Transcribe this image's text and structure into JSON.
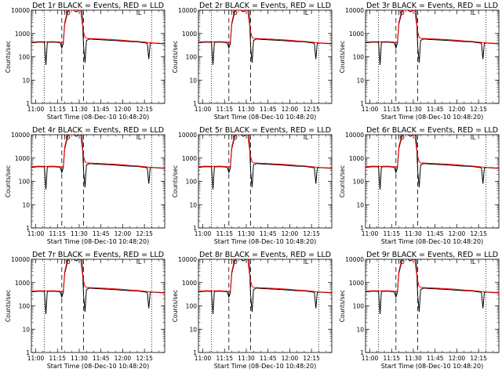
{
  "colors": {
    "events": "#000000",
    "lld": "#ff0000",
    "frame": "#000000"
  },
  "panel_defaults": {
    "type": "line",
    "yscale": "log",
    "ylim": [
      1,
      10000
    ],
    "ylabel": "Counts/sec",
    "xlabel": "Start Time (08-Dec-10 10:48:20)",
    "xlim_min": [
      57,
      149
    ],
    "ytick_values": [
      1,
      10,
      100,
      1000,
      10000
    ],
    "ytick_labels": [
      "1",
      "10",
      "100",
      "1000",
      "10000"
    ],
    "xtick_values": [
      60,
      75,
      90,
      105,
      120,
      135
    ],
    "xtick_labels": [
      "11:00",
      "11:15",
      "11:30",
      "11:45",
      "12:00",
      "12:15"
    ],
    "dotted_markers": [
      66,
      140
    ],
    "dashed_markers": [
      78,
      93
    ],
    "flag_markers": [
      {
        "x": 80,
        "label": "O"
      },
      {
        "x": 130,
        "label": "L"
      }
    ],
    "series": [
      {
        "name": "BLACK = Events",
        "x": [
          57,
          62,
          66,
          67,
          68,
          72,
          76,
          77,
          78,
          79,
          80,
          82,
          83,
          84,
          86,
          88,
          90,
          91,
          92,
          93,
          94,
          95,
          97,
          100,
          105,
          110,
          115,
          120,
          125,
          130,
          135,
          137,
          138,
          139,
          140,
          143,
          146,
          149
        ],
        "y": [
          400,
          430,
          420,
          45,
          420,
          430,
          410,
          380,
          240,
          380,
          2500,
          8000,
          10000,
          10000,
          10000,
          8500,
          10000,
          10000,
          9000,
          300,
          55,
          500,
          580,
          560,
          540,
          520,
          500,
          470,
          450,
          440,
          400,
          380,
          80,
          380,
          390,
          380,
          370,
          360
        ]
      },
      {
        "name": "RED = LLD",
        "x": [
          57,
          62,
          67,
          72,
          77,
          78,
          79,
          80,
          82,
          84,
          86,
          88,
          90,
          91,
          92,
          93,
          94,
          95,
          97,
          100,
          105,
          110,
          115,
          120,
          125,
          130,
          135,
          140,
          146,
          149
        ],
        "y": [
          430,
          450,
          440,
          450,
          430,
          400,
          450,
          3000,
          10000,
          10000,
          10000,
          10000,
          10000,
          10000,
          3000,
          1200,
          700,
          620,
          610,
          600,
          580,
          560,
          540,
          510,
          480,
          460,
          430,
          400,
          380,
          370
        ]
      }
    ]
  },
  "chart_data": [
    {
      "title": "Det 1r BLACK = Events, RED = LLD"
    },
    {
      "title": "Det 2r BLACK = Events, RED = LLD"
    },
    {
      "title": "Det 3r BLACK = Events, RED = LLD"
    },
    {
      "title": "Det 4r BLACK = Events, RED = LLD"
    },
    {
      "title": "Det 5r BLACK = Events, RED = LLD"
    },
    {
      "title": "Det 6r BLACK = Events, RED = LLD"
    },
    {
      "title": "Det 7r BLACK = Events, RED = LLD"
    },
    {
      "title": "Det 8r BLACK = Events, RED = LLD"
    },
    {
      "title": "Det 9r BLACK = Events, RED = LLD"
    }
  ]
}
